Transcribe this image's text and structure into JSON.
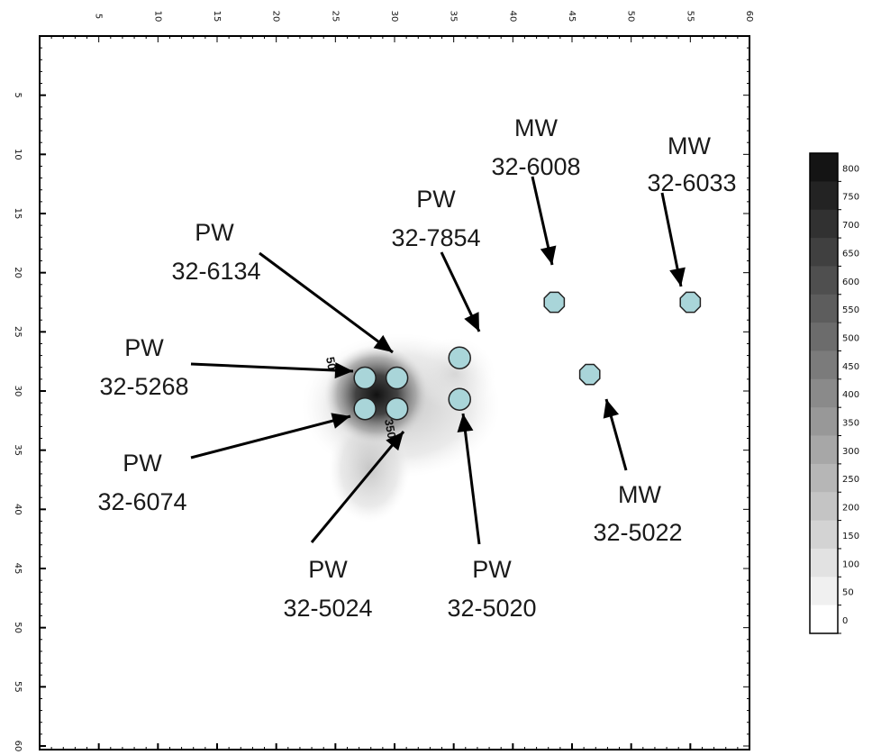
{
  "map": {
    "x_ticks": [
      "5",
      "10",
      "15",
      "20",
      "25",
      "30",
      "35",
      "40",
      "45",
      "50",
      "55",
      "60"
    ],
    "y_ticks": [
      "5",
      "10",
      "15",
      "20",
      "25",
      "30",
      "35",
      "40",
      "45",
      "50",
      "55",
      "60"
    ],
    "contour_labels": [
      "50",
      "350"
    ],
    "colors": {
      "well_fill": "#a9d5d9",
      "well_stroke": "#222222",
      "plume_core": "#111111",
      "frame": "#000000"
    },
    "wells": [
      {
        "id": "pw-32-5268",
        "type": "PW",
        "number": "32-5268",
        "marker": "circle",
        "x": 27.5,
        "y": 28.9
      },
      {
        "id": "pw-32-6134",
        "type": "PW",
        "number": "32-6134",
        "marker": "circle",
        "x": 30.2,
        "y": 28.9
      },
      {
        "id": "pw-32-6074",
        "type": "PW",
        "number": "32-6074",
        "marker": "circle",
        "x": 27.5,
        "y": 31.5
      },
      {
        "id": "pw-32-5024",
        "type": "PW",
        "number": "32-5024",
        "marker": "circle",
        "x": 30.2,
        "y": 31.5
      },
      {
        "id": "pw-32-7854",
        "type": "PW",
        "number": "32-7854",
        "marker": "circle",
        "x": 35.5,
        "y": 27.2
      },
      {
        "id": "pw-32-5020",
        "type": "PW",
        "number": "32-5020",
        "marker": "circle",
        "x": 35.5,
        "y": 30.7
      },
      {
        "id": "mw-32-6008",
        "type": "MW",
        "number": "32-6008",
        "marker": "octagon",
        "x": 43.5,
        "y": 22.5
      },
      {
        "id": "mw-32-6033",
        "type": "MW",
        "number": "32-6033",
        "marker": "octagon",
        "x": 55.0,
        "y": 22.5
      },
      {
        "id": "mw-32-5022",
        "type": "MW",
        "number": "32-5022",
        "marker": "octagon",
        "x": 46.5,
        "y": 28.6
      }
    ]
  },
  "legend": {
    "levels": [
      "800",
      "750",
      "700",
      "650",
      "600",
      "550",
      "500",
      "450",
      "400",
      "350",
      "300",
      "250",
      "200",
      "150",
      "100",
      "50",
      "0"
    ]
  }
}
